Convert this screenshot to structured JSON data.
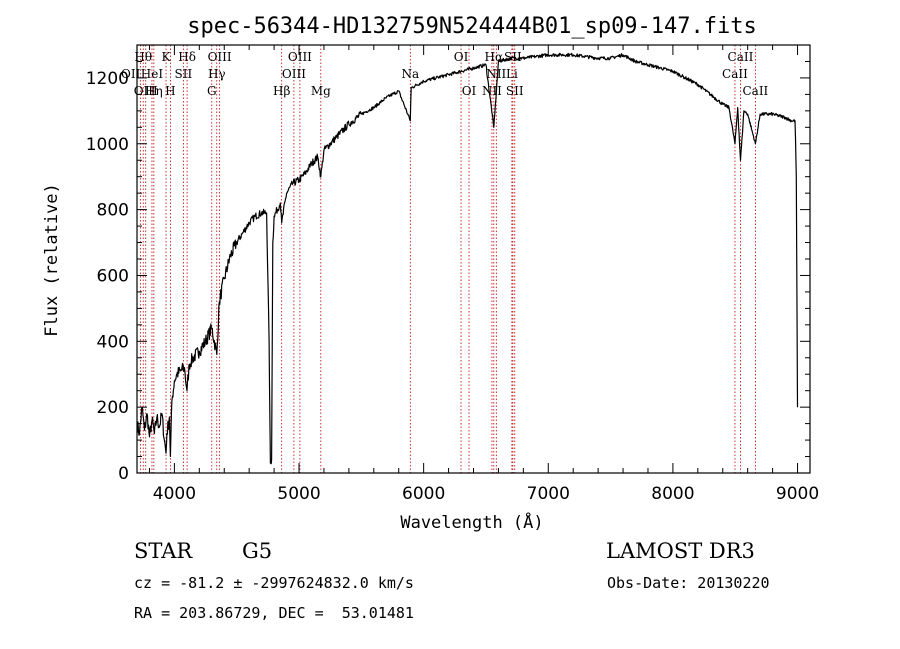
{
  "chart_data": {
    "type": "line",
    "title": "spec-56344-HD132759N524444B01_sp09-147.fits",
    "xlabel": "Wavelength (Å)",
    "ylabel": "Flux (relative)",
    "xlim": [
      3700,
      9100
    ],
    "ylim": [
      0,
      1300
    ],
    "xticks": [
      4000,
      5000,
      6000,
      7000,
      8000,
      9000
    ],
    "yticks": [
      0,
      200,
      400,
      600,
      800,
      1000,
      1200
    ],
    "grid": false,
    "line_color": "#000000",
    "marker_color": "#c00000",
    "spectrum": {
      "x": [
        3700,
        3720,
        3740,
        3760,
        3780,
        3800,
        3820,
        3840,
        3860,
        3880,
        3900,
        3920,
        3933,
        3940,
        3960,
        3968,
        3980,
        4000,
        4020,
        4050,
        4080,
        4101,
        4120,
        4150,
        4200,
        4250,
        4300,
        4340,
        4360,
        4400,
        4450,
        4500,
        4550,
        4600,
        4650,
        4700,
        4740,
        4760,
        4770,
        4780,
        4790,
        4800,
        4850,
        4861,
        4900,
        4950,
        5000,
        5050,
        5100,
        5150,
        5175,
        5200,
        5300,
        5400,
        5500,
        5600,
        5700,
        5800,
        5893,
        5900,
        6000,
        6100,
        6200,
        6300,
        6400,
        6500,
        6563,
        6600,
        6700,
        6800,
        6900,
        7000,
        7100,
        7200,
        7300,
        7400,
        7500,
        7600,
        7700,
        7800,
        7900,
        8000,
        8100,
        8200,
        8300,
        8400,
        8450,
        8498,
        8520,
        8542,
        8570,
        8600,
        8662,
        8700,
        8800,
        8900,
        8950,
        8980,
        8990,
        9000
      ],
      "y": [
        150,
        120,
        200,
        130,
        180,
        110,
        160,
        120,
        170,
        140,
        180,
        100,
        60,
        120,
        170,
        50,
        220,
        280,
        300,
        310,
        320,
        250,
        330,
        350,
        370,
        400,
        440,
        360,
        520,
        590,
        660,
        700,
        730,
        760,
        780,
        790,
        790,
        400,
        30,
        40,
        700,
        780,
        820,
        760,
        850,
        880,
        890,
        910,
        940,
        960,
        900,
        980,
        1020,
        1060,
        1090,
        1110,
        1140,
        1160,
        1070,
        1170,
        1190,
        1200,
        1210,
        1220,
        1230,
        1240,
        1050,
        1250,
        1260,
        1260,
        1265,
        1270,
        1270,
        1270,
        1265,
        1260,
        1260,
        1270,
        1250,
        1240,
        1230,
        1220,
        1200,
        1180,
        1150,
        1120,
        1110,
        1000,
        1110,
        950,
        1100,
        1090,
        1000,
        1090,
        1090,
        1080,
        1070,
        1070,
        900,
        200
      ]
    },
    "lines": [
      {
        "label": "OII",
        "x": 3727,
        "row": 1,
        "anchor": "end"
      },
      {
        "label": "Hθ",
        "x": 3750,
        "row": 0,
        "anchor": "middle"
      },
      {
        "label": "OIII",
        "x": 3770,
        "row": 2,
        "anchor": "middle"
      },
      {
        "label": "HeI",
        "x": 3820,
        "row": 1,
        "anchor": "middle"
      },
      {
        "label": "Hη",
        "x": 3835,
        "row": 2,
        "anchor": "middle"
      },
      {
        "label": "K",
        "x": 3933,
        "row": 0,
        "anchor": "middle"
      },
      {
        "label": "H",
        "x": 3968,
        "row": 2,
        "anchor": "middle"
      },
      {
        "label": "SII",
        "x": 4072,
        "row": 1,
        "anchor": "middle"
      },
      {
        "label": "Hδ",
        "x": 4102,
        "row": 0,
        "anchor": "middle"
      },
      {
        "label": "G",
        "x": 4300,
        "row": 2,
        "anchor": "middle"
      },
      {
        "label": "Hγ",
        "x": 4340,
        "row": 1,
        "anchor": "middle"
      },
      {
        "label": "OIII",
        "x": 4363,
        "row": 0,
        "anchor": "middle"
      },
      {
        "label": "Hβ",
        "x": 4861,
        "row": 2,
        "anchor": "middle"
      },
      {
        "label": "OIII",
        "x": 4959,
        "row": 1,
        "anchor": "middle"
      },
      {
        "label": "OIII",
        "x": 5007,
        "row": 0,
        "anchor": "middle"
      },
      {
        "label": "Mg",
        "x": 5175,
        "row": 2,
        "anchor": "middle"
      },
      {
        "label": "Na",
        "x": 5893,
        "row": 1,
        "anchor": "middle"
      },
      {
        "label": "OI",
        "x": 6300,
        "row": 0,
        "anchor": "middle"
      },
      {
        "label": "OI",
        "x": 6364,
        "row": 2,
        "anchor": "middle"
      },
      {
        "label": "NII",
        "x": 6548,
        "row": 2,
        "anchor": "middle"
      },
      {
        "label": "Hα",
        "x": 6563,
        "row": 0,
        "anchor": "middle"
      },
      {
        "label": "NII",
        "x": 6583,
        "row": 1,
        "anchor": "middle"
      },
      {
        "label": "Li",
        "x": 6708,
        "row": 1,
        "anchor": "middle"
      },
      {
        "label": "SII",
        "x": 6716,
        "row": 0,
        "anchor": "middle"
      },
      {
        "label": "SII",
        "x": 6731,
        "row": 2,
        "anchor": "middle"
      },
      {
        "label": "CaII",
        "x": 8498,
        "row": 1,
        "anchor": "middle"
      },
      {
        "label": "CaII",
        "x": 8542,
        "row": 0,
        "anchor": "middle"
      },
      {
        "label": "CaII",
        "x": 8662,
        "row": 2,
        "anchor": "middle"
      }
    ]
  },
  "info": {
    "object_class": "STAR",
    "subclass": "G5",
    "survey": "LAMOST DR3",
    "cz": "cz = -81.2 ± -2997624832.0 km/s",
    "obs_date": "Obs-Date: 20130220",
    "coords": "RA = 203.86729, DEC =  53.01481"
  }
}
